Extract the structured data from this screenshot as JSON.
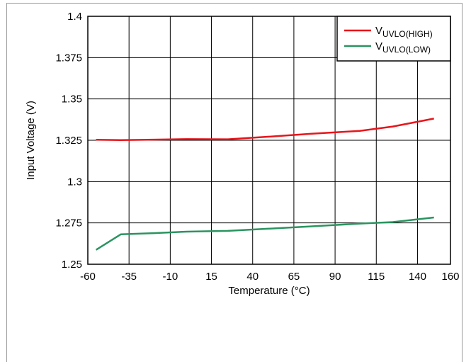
{
  "chart_data": {
    "type": "line",
    "xlabel": "Temperature (°C)",
    "ylabel": "Input Voltage (V)",
    "xlim": [
      -60,
      160
    ],
    "ylim": [
      1.25,
      1.4
    ],
    "xticks": [
      -60,
      -35,
      -10,
      15,
      40,
      65,
      90,
      115,
      140,
      160
    ],
    "yticks": [
      1.25,
      1.275,
      1.3,
      1.325,
      1.35,
      1.375,
      1.4
    ],
    "ytick_labels": [
      "1.25",
      "1.275",
      "1.3",
      "1.325",
      "1.35",
      "1.375",
      "1.4"
    ],
    "grid": true,
    "legend_position": "top-right",
    "series": [
      {
        "name_main": "V",
        "name_sub": "UVLO(HIGH)",
        "color": "#e8151b",
        "x": [
          -55,
          -40,
          -20,
          0,
          25,
          50,
          75,
          105,
          125,
          150
        ],
        "y": [
          1.3253,
          1.3251,
          1.3254,
          1.3257,
          1.3256,
          1.3272,
          1.3289,
          1.3307,
          1.3333,
          1.3381
        ]
      },
      {
        "name_main": "V",
        "name_sub": "UVLO(LOW)",
        "color": "#2a9460",
        "x": [
          -55,
          -40,
          -20,
          0,
          25,
          50,
          75,
          105,
          125,
          150
        ],
        "y": [
          1.2587,
          1.2681,
          1.2688,
          1.2697,
          1.2702,
          1.2715,
          1.2729,
          1.2746,
          1.2755,
          1.2783
        ]
      }
    ]
  }
}
